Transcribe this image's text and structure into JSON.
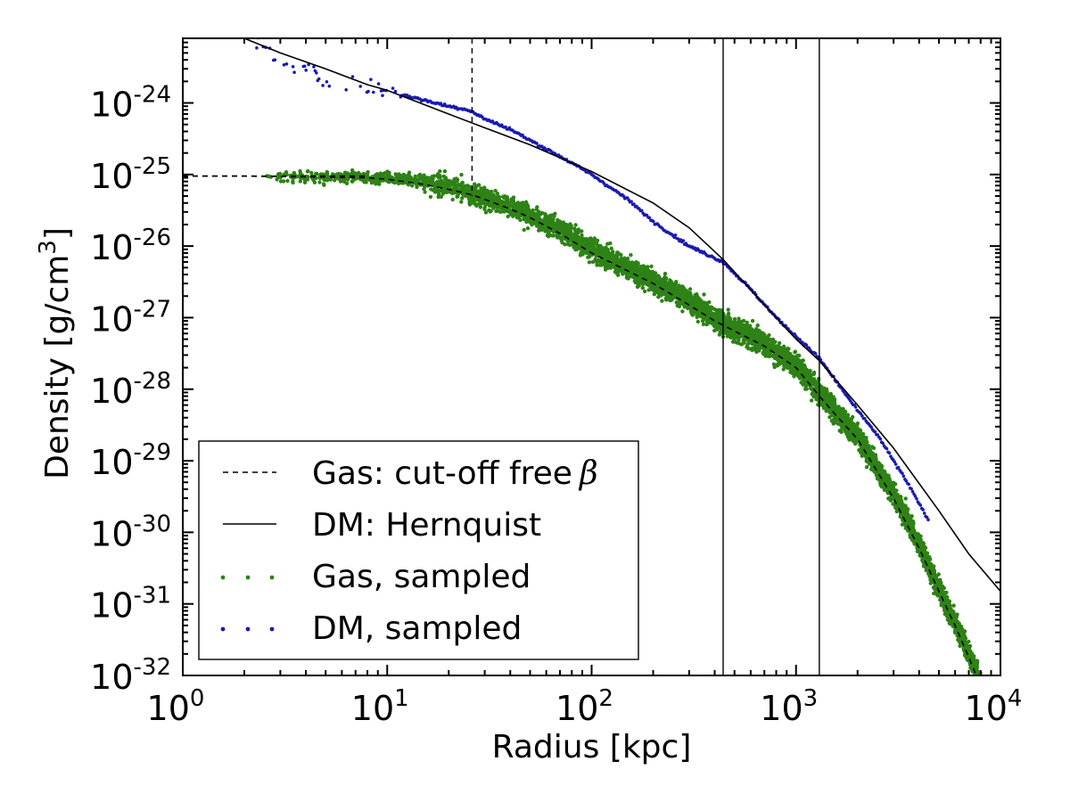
{
  "chart_data": {
    "type": "scatter",
    "xscale": "log",
    "yscale": "log",
    "xlabel": "Radius [kpc]",
    "ylabel": "Density [g/cm",
    "ylabel_sup": "3",
    "ylabel_end": "]",
    "xlim": [
      1,
      10000
    ],
    "ylim": [
      1e-32,
      8e-24
    ],
    "x_ticks": [
      {
        "value": 1,
        "base": "10",
        "exp": "0"
      },
      {
        "value": 10,
        "base": "10",
        "exp": "1"
      },
      {
        "value": 100,
        "base": "10",
        "exp": "2"
      },
      {
        "value": 1000,
        "base": "10",
        "exp": "3"
      },
      {
        "value": 10000,
        "base": "10",
        "exp": "4"
      }
    ],
    "y_ticks": [
      {
        "value": 1e-24,
        "base": "10",
        "exp": "-24"
      },
      {
        "value": 1e-25,
        "base": "10",
        "exp": "-25"
      },
      {
        "value": 1e-26,
        "base": "10",
        "exp": "-26"
      },
      {
        "value": 1e-27,
        "base": "10",
        "exp": "-27"
      },
      {
        "value": 1e-28,
        "base": "10",
        "exp": "-28"
      },
      {
        "value": 1e-29,
        "base": "10",
        "exp": "-29"
      },
      {
        "value": 1e-30,
        "base": "10",
        "exp": "-30"
      },
      {
        "value": 1e-31,
        "base": "10",
        "exp": "-31"
      },
      {
        "value": 1e-32,
        "base": "10",
        "exp": "-32"
      }
    ],
    "grid": false,
    "legend_placement": "lower-left",
    "vertical_lines": [
      {
        "x": 26,
        "style": "dashed",
        "y_max": 8e-24,
        "y_min": 5e-26
      },
      {
        "x": 440,
        "style": "solid"
      },
      {
        "x": 1300,
        "style": "solid"
      }
    ],
    "horizontal_lines": [
      {
        "y": 9.5e-26,
        "style": "dashed",
        "x_min": 1,
        "x_max": 8
      }
    ],
    "series": [
      {
        "name": "Gas: cut-off free",
        "name_symbol": "β",
        "kind": "line",
        "style": "dashed",
        "color": "#000000",
        "x": [
          1,
          2,
          5,
          8,
          10,
          15,
          20,
          26,
          30,
          40,
          50,
          70,
          100,
          150,
          200,
          300,
          400,
          500,
          700,
          1000,
          1300,
          1500,
          2000,
          3000,
          4000,
          5000,
          6000,
          7000,
          8000
        ],
        "y": [
          9.5e-26,
          9.5e-26,
          9.2e-26,
          9e-26,
          8.6e-26,
          7.3e-26,
          6.2e-26,
          5.2e-26,
          4.5e-26,
          3.3e-26,
          2.5e-26,
          1.5e-26,
          8e-27,
          4.5e-27,
          3e-27,
          1.5e-27,
          9e-28,
          6.5e-28,
          4e-28,
          2e-28,
          8e-29,
          5e-29,
          2e-29,
          3e-30,
          6e-31,
          1.5e-31,
          5e-32,
          1.8e-32,
          7e-33
        ]
      },
      {
        "name": "DM: Hernquist",
        "kind": "line",
        "style": "solid",
        "color": "#000000",
        "x": [
          2,
          3,
          5,
          8,
          10,
          20,
          30,
          50,
          100,
          200,
          300,
          440,
          700,
          1000,
          1300,
          2000,
          3000,
          5000,
          7000,
          10000
        ],
        "y": [
          8e-24,
          5e-24,
          3e-24,
          1.8e-24,
          1.5e-24,
          7e-25,
          4.5e-25,
          2.6e-25,
          1.1e-25,
          4e-26,
          1.8e-26,
          6.5e-27,
          1.5e-27,
          5e-28,
          2.5e-28,
          6e-29,
          1.5e-29,
          2e-30,
          5e-31,
          1.5e-31
        ]
      },
      {
        "name": "Gas, sampled",
        "kind": "scatter",
        "color": "#2e8216",
        "band_x": [
          2.5,
          5,
          8,
          10,
          15,
          20,
          30,
          50,
          70,
          100,
          150,
          200,
          300,
          400,
          500,
          700,
          1000,
          1300,
          1500,
          2000,
          3000,
          4000,
          5000,
          6000,
          7000,
          8000
        ],
        "band_y": [
          9.5e-26,
          9.4e-26,
          9.2e-26,
          9e-26,
          8e-26,
          6.8e-26,
          4.8e-26,
          2.7e-26,
          1.7e-26,
          9e-27,
          5e-27,
          3.2e-27,
          1.7e-27,
          1e-27,
          7e-28,
          4.3e-28,
          2.2e-28,
          9e-29,
          5.5e-29,
          2.2e-29,
          3.5e-30,
          7e-31,
          1.6e-31,
          5.5e-32,
          2e-32,
          8e-33
        ],
        "band_width_dex": 0.32
      },
      {
        "name": "DM, sampled",
        "kind": "scatter",
        "color": "#1a1ab0",
        "x": [
          2.3,
          2.6,
          3,
          3.3,
          3.6,
          4,
          4.4,
          5,
          5.5,
          6,
          7,
          8,
          10,
          12,
          15,
          20,
          25,
          30,
          40,
          50,
          70,
          100,
          150,
          200,
          300,
          440,
          600,
          800,
          1000,
          1300,
          1600,
          2000,
          2500,
          3000,
          3500,
          4000,
          4500
        ],
        "y": [
          6e-24,
          5.5e-24,
          3.5e-24,
          3e-24,
          2.8e-24,
          3e-24,
          2.5e-24,
          2.2e-24,
          2e-24,
          1.9e-24,
          1.8e-24,
          1.6e-24,
          1.5e-24,
          1.3e-24,
          1.1e-24,
          9e-25,
          8e-25,
          6e-25,
          4.3e-25,
          3e-25,
          1.8e-25,
          1e-25,
          4.5e-26,
          2.2e-26,
          1e-26,
          6e-27,
          2.5e-27,
          1e-27,
          5.5e-28,
          2.7e-28,
          1.2e-28,
          5e-29,
          2.3e-29,
          1e-29,
          5e-30,
          2.5e-30,
          1.4e-30
        ]
      }
    ]
  }
}
